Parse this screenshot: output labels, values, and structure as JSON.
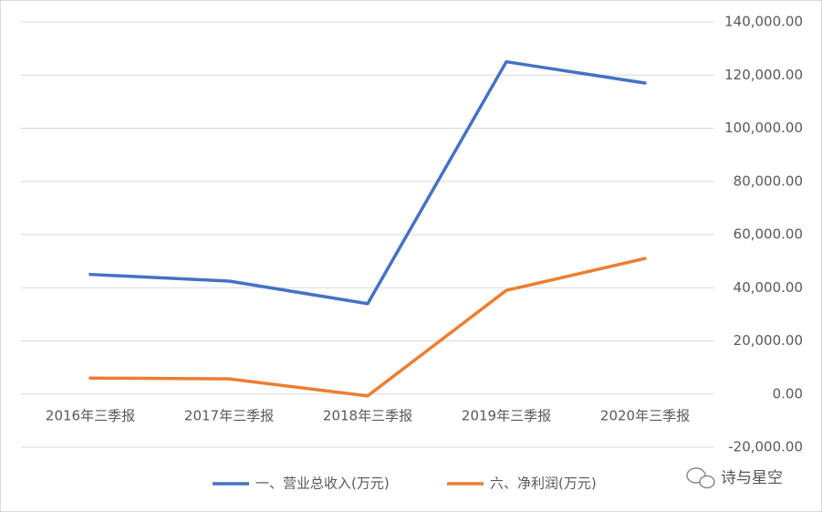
{
  "chart_data": {
    "type": "line",
    "categories": [
      "2016年三季报",
      "2017年三季报",
      "2018年三季报",
      "2019年三季报",
      "2020年三季报"
    ],
    "series": [
      {
        "name": "一、营业总收入(万元)",
        "color": "#4472c4",
        "values": [
          45000,
          42500,
          34000,
          125000,
          117000
        ]
      },
      {
        "name": "六、净利润(万元)",
        "color": "#ed7d31",
        "values": [
          6000,
          5700,
          -700,
          39000,
          51000
        ]
      }
    ],
    "ylim": [
      -20000,
      140000
    ],
    "yticks": [
      {
        "value": -20000,
        "label": "-20,000.00"
      },
      {
        "value": 0,
        "label": "0.00"
      },
      {
        "value": 20000,
        "label": "20,000.00"
      },
      {
        "value": 40000,
        "label": "40,000.00"
      },
      {
        "value": 60000,
        "label": "60,000.00"
      },
      {
        "value": 80000,
        "label": "80,000.00"
      },
      {
        "value": 100000,
        "label": "100,000.00"
      },
      {
        "value": 120000,
        "label": "120,000.00"
      },
      {
        "value": 140000,
        "label": "140,000.00"
      }
    ],
    "grid": true,
    "legend": "bottom",
    "watermark": "诗与星空"
  }
}
